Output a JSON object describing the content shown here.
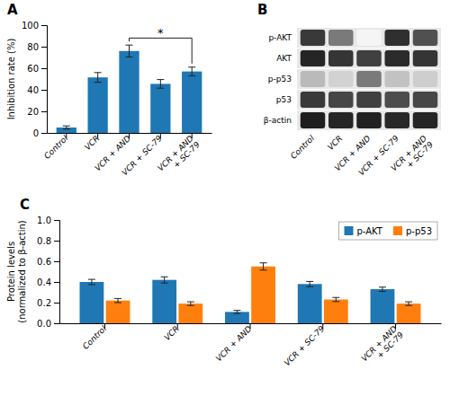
{
  "chart_data": [
    {
      "type": "bar",
      "title": "A",
      "categories": [
        "Control",
        "VCR",
        "VCR + AND",
        "VCR + SC-79",
        "VCR + AND\n+ SC-79"
      ],
      "values": [
        5.0,
        51.5,
        76.0,
        45.5,
        57.0
      ],
      "errors": [
        1.5,
        4.5,
        5.5,
        4.0,
        4.0
      ],
      "ylabel": "Inhibition rate (%)",
      "ylim": [
        0,
        100
      ],
      "yticks": [
        0,
        20,
        40,
        60,
        80,
        100
      ],
      "grid": false,
      "annotations": [
        {
          "text": "*",
          "x": [
            "VCR + AND",
            "VCR + AND\n+ SC-79"
          ],
          "y": 88
        }
      ]
    },
    {
      "type": "heatmap",
      "title": "B",
      "categories": [
        "Control",
        "VCR",
        "VCR + AND",
        "VCR + SC-79",
        "VCR + AND\n+ SC-79"
      ],
      "series": [
        {
          "name": "p-AKT",
          "values": [
            0.82,
            0.6,
            0.08,
            0.85,
            0.75
          ]
        },
        {
          "name": "AKT",
          "values": [
            0.88,
            0.83,
            0.8,
            0.86,
            0.83
          ]
        },
        {
          "name": "p-p53",
          "values": [
            0.38,
            0.28,
            0.6,
            0.35,
            0.3
          ]
        },
        {
          "name": "p53",
          "values": [
            0.82,
            0.78,
            0.8,
            0.76,
            0.78
          ]
        },
        {
          "name": "β-actin",
          "values": [
            0.9,
            0.88,
            0.89,
            0.87,
            0.88
          ]
        }
      ]
    },
    {
      "type": "bar",
      "title": "C",
      "categories": [
        "Control",
        "VCR",
        "VCR + AND",
        "VCR + SC-79",
        "VCR + AND\n+ SC-79"
      ],
      "series": [
        {
          "name": "p-AKT",
          "values": [
            0.4,
            0.42,
            0.11,
            0.38,
            0.33
          ],
          "errors": [
            0.025,
            0.03,
            0.015,
            0.025,
            0.02
          ]
        },
        {
          "name": "p-p53",
          "values": [
            0.22,
            0.19,
            0.55,
            0.23,
            0.19
          ],
          "errors": [
            0.02,
            0.018,
            0.035,
            0.02,
            0.018
          ]
        }
      ],
      "ylabel": "Protein levels\n(normalized to β-actin)",
      "ylim": [
        0,
        1.0
      ],
      "yticks": [
        {
          "value": 0,
          "label": "0.0"
        },
        0.2,
        0.4,
        0.6,
        0.8,
        {
          "value": 1,
          "label": "1.0"
        }
      ],
      "grid": false,
      "legend": "top-right"
    }
  ]
}
